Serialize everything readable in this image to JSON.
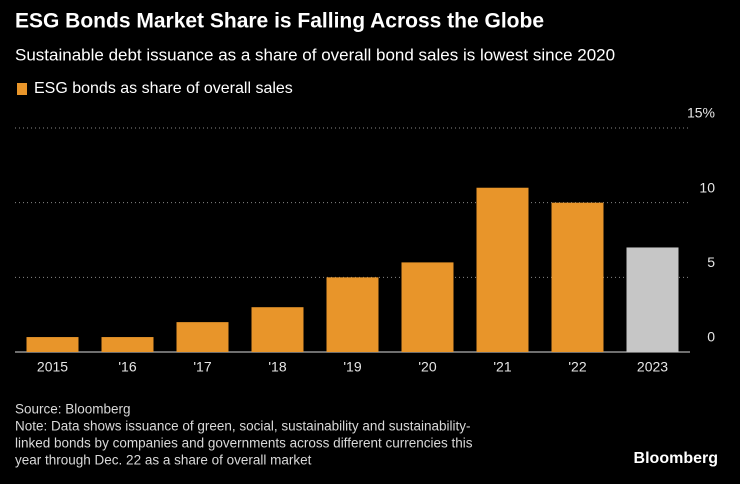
{
  "chart_data": {
    "type": "bar",
    "title": "ESG Bonds Market Share is Falling Across the Globe",
    "subtitle": "Sustainable debt issuance as a share of overall bond sales is lowest since 2020",
    "categories": [
      "2015",
      "'16",
      "'17",
      "'18",
      "'19",
      "'20",
      "'21",
      "'22",
      "2023"
    ],
    "series": [
      {
        "name": "ESG bonds as share of overall sales",
        "color": "#e8952a",
        "values": [
          1,
          1,
          2,
          3,
          5,
          6,
          11,
          10,
          7
        ]
      }
    ],
    "bar_colors": [
      "#e8952a",
      "#e8952a",
      "#e8952a",
      "#e8952a",
      "#e8952a",
      "#e8952a",
      "#e8952a",
      "#e8952a",
      "#c6c6c6"
    ],
    "ylim": [
      0,
      15
    ],
    "yticks": [
      0,
      5,
      10,
      {
        "value": 15,
        "label": "15%"
      }
    ],
    "grid": true,
    "source": "Source: Bloomberg",
    "note": [
      "Note: Data shows issuance of green, social, sustainability and sustainability-",
      "linked bonds by companies and governments across different currencies this",
      "year through Dec. 22 as a share of overall market"
    ],
    "logo": "Bloomberg"
  }
}
